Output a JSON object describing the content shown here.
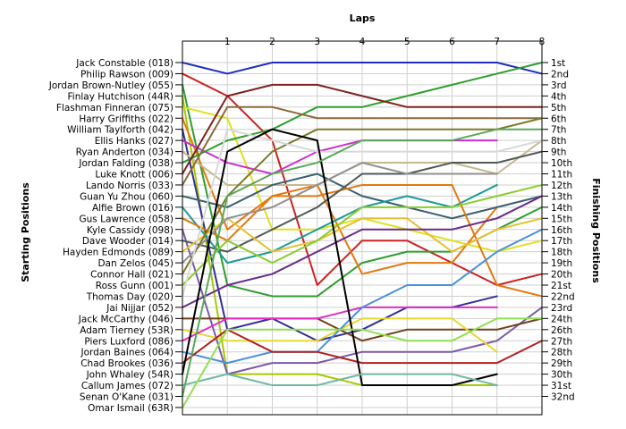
{
  "chart_data": {
    "type": "line",
    "title": "",
    "xlabel": "Laps",
    "ylabel_left": "Starting Positions",
    "ylabel_right": "Finishing Positions",
    "laps": [
      0,
      1,
      2,
      3,
      4,
      5,
      6,
      7,
      8
    ],
    "x_tick_labels": [
      "1",
      "2",
      "3",
      "4",
      "5",
      "6",
      "7",
      "8"
    ],
    "finishing_labels": [
      "1st",
      "2nd",
      "3rd",
      "4th",
      "5th",
      "6th",
      "7th",
      "8th",
      "9th",
      "10th",
      "11th",
      "12th",
      "13th",
      "14th",
      "15th",
      "16th",
      "17th",
      "18th",
      "19th",
      "20th",
      "21st",
      "22nd",
      "23rd",
      "24th",
      "26th",
      "27th",
      "28th",
      "29th",
      "30th",
      "31st",
      "32nd"
    ],
    "y_range": [
      1,
      32
    ],
    "grid": true,
    "series": [
      {
        "name": "Jack Constable (018)",
        "color": "#1f2db8",
        "positions": [
          1,
          2,
          1,
          1,
          1,
          1,
          1,
          1,
          2
        ]
      },
      {
        "name": "Philip Rawson (009)",
        "color": "#cc2222",
        "positions": [
          2,
          4,
          8,
          21,
          17,
          17,
          19,
          21,
          20
        ]
      },
      {
        "name": "Jordan Brown-Nutley (055)",
        "color": "#2e9e2e",
        "positions": [
          3,
          21,
          22,
          22,
          19,
          18,
          18,
          16,
          14
        ]
      },
      {
        "name": "Finlay Hutchison (44R)",
        "color": "#a8c800",
        "positions": [
          4,
          29,
          29,
          29,
          30,
          30,
          30,
          30
        ]
      },
      {
        "name": "Flashman Finneran (075)",
        "color": "#e0e020",
        "positions": [
          5,
          6,
          16,
          16,
          15,
          16,
          17,
          18,
          17
        ]
      },
      {
        "name": "Harry Griffiths (022)",
        "color": "#e07a10",
        "positions": [
          6,
          16,
          13,
          12,
          20,
          19,
          19,
          14
        ]
      },
      {
        "name": "William Taylforth (042)",
        "color": "#303098",
        "positions": [
          7,
          25,
          24,
          26,
          25,
          23,
          23,
          22
        ]
      },
      {
        "name": "Ellis Hanks (027)",
        "color": "#cc30cc",
        "positions": [
          8,
          10,
          11,
          9,
          8,
          8,
          8,
          8
        ]
      },
      {
        "name": "Ryan Anderton (034)",
        "color": "#c8b890",
        "positions": [
          9,
          12,
          12,
          12,
          10,
          10,
          10,
          11,
          8
        ]
      },
      {
        "name": "Jordan Falding (038)",
        "color": "#2e9e2e",
        "positions": [
          10,
          8,
          7,
          5,
          5,
          4,
          3,
          2,
          1
        ]
      },
      {
        "name": "Luke Knott (006)",
        "color": "#802020",
        "positions": [
          11,
          4,
          3,
          3,
          4,
          5,
          5,
          5,
          5
        ]
      },
      {
        "name": "Lando Norris (033)",
        "color": "#8b6a3a",
        "positions": [
          12,
          5,
          5,
          6,
          6,
          6,
          6,
          6,
          6
        ]
      },
      {
        "name": "Guan Yu Zhou (060)",
        "color": "#3a6070",
        "positions": [
          13,
          14,
          12,
          11,
          13,
          14,
          15,
          14,
          13
        ]
      },
      {
        "name": "Alfie Brown (016)",
        "color": "#1e9a9a",
        "positions": [
          14,
          19,
          18,
          16,
          14,
          13,
          14,
          12
        ]
      },
      {
        "name": "Gus Lawrence (058)",
        "color": "#e07a10",
        "positions": [
          15,
          17,
          13,
          13,
          12,
          12,
          12,
          21,
          22
        ]
      },
      {
        "name": "Kyle Cassidy (098)",
        "color": "#7a5aa8",
        "positions": [
          16,
          29,
          28,
          28,
          27,
          27,
          27,
          26,
          23
        ]
      },
      {
        "name": "Dave Wooder (014)",
        "color": "#505858",
        "positions": [
          17,
          18,
          16,
          14,
          11,
          11,
          10,
          10,
          9
        ]
      },
      {
        "name": "Hayden Edmonds (089)",
        "color": "#e8c030",
        "positions": [
          18,
          15,
          18,
          17,
          15,
          15,
          18,
          16,
          15
        ]
      },
      {
        "name": "Dan Zelos (045)",
        "color": "#909090",
        "positions": [
          19,
          15,
          14,
          12,
          10,
          11,
          11,
          11
        ]
      },
      {
        "name": "Connor Hall (021)",
        "color": "#7a7a2a",
        "positions": [
          20,
          13,
          9,
          7,
          7,
          7,
          7,
          7,
          6
        ]
      },
      {
        "name": "Ross Gunn (001)",
        "color": "#8acc30",
        "positions": [
          21,
          17,
          19,
          17,
          14,
          14,
          14,
          13,
          12
        ]
      },
      {
        "name": "Thomas Day (020)",
        "color": "#d8d8d8",
        "positions": [
          22,
          7,
          8,
          9,
          9,
          9,
          9,
          9,
          8
        ]
      },
      {
        "name": "Jai Nijjar (052)",
        "color": "#6a2a8a",
        "positions": [
          23,
          21,
          20,
          18,
          16,
          16,
          16,
          15,
          13
        ]
      },
      {
        "name": "Jack McCarthy (046)",
        "color": "#70401a",
        "positions": [
          24,
          24,
          24,
          24,
          26,
          25,
          25,
          25,
          24
        ]
      },
      {
        "name": "Adam Tierney (53R)",
        "color": "#e8d830",
        "positions": [
          25,
          26,
          26,
          26,
          24,
          24,
          24,
          27
        ]
      },
      {
        "name": "Piers Luxford (086)",
        "color": "#e030c0",
        "positions": [
          26,
          24,
          24,
          24,
          23,
          23,
          23,
          23
        ]
      },
      {
        "name": "Jordan Baines (064)",
        "color": "#4a90d8",
        "positions": [
          27,
          28,
          27,
          27,
          23,
          21,
          21,
          18,
          16
        ]
      },
      {
        "name": "Chad Brookes (036)",
        "color": "#b02020",
        "positions": [
          28,
          25,
          27,
          27,
          28,
          28,
          28,
          28,
          26
        ]
      },
      {
        "name": "John Whaley (54R)",
        "color": "#000000",
        "positions": [
          29,
          9,
          7,
          8,
          30,
          30,
          30,
          29
        ]
      },
      {
        "name": "Callum James (072)",
        "color": "#70b8a0",
        "positions": [
          30,
          29,
          30,
          30,
          29,
          29,
          29,
          30
        ]
      },
      {
        "name": "Senan O'Kane (031)",
        "color": "#5aa85a",
        "positions": [
          31,
          13,
          11,
          10,
          8,
          8,
          8,
          7,
          7
        ]
      },
      {
        "name": "Omar Ismail (63R)",
        "color": "#90e050",
        "positions": [
          32,
          25,
          25,
          25,
          25,
          26,
          26,
          24,
          24
        ]
      }
    ]
  }
}
